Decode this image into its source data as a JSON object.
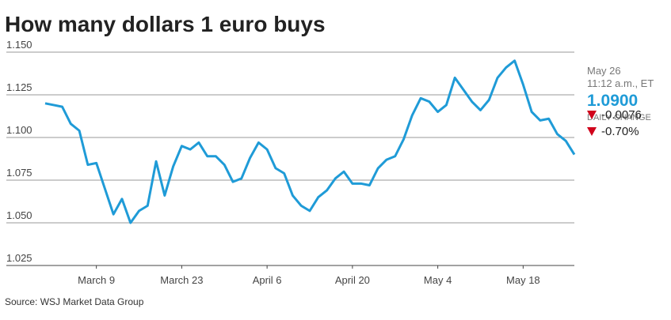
{
  "chart_data": {
    "type": "line",
    "title": "How many dollars 1 euro buys",
    "source": "Source: WSJ Market Data Group",
    "categories": [
      null,
      null,
      null,
      null,
      null,
      null,
      "March 9",
      null,
      null,
      null,
      null,
      null,
      null,
      null,
      null,
      null,
      "March 23",
      null,
      null,
      null,
      null,
      null,
      null,
      null,
      null,
      null,
      "April 6",
      null,
      null,
      null,
      null,
      null,
      null,
      null,
      null,
      null,
      "April 20",
      null,
      null,
      null,
      null,
      null,
      null,
      null,
      null,
      null,
      "May 4",
      null,
      null,
      null,
      null,
      null,
      null,
      null,
      null,
      null,
      "May 18",
      null,
      null,
      null,
      null,
      null,
      null
    ],
    "series": [
      {
        "color": "#1f9bd7",
        "values": [
          1.12,
          1.119,
          1.118,
          1.108,
          1.104,
          1.084,
          1.085,
          1.07,
          1.055,
          1.064,
          1.05,
          1.057,
          1.06,
          1.086,
          1.066,
          1.083,
          1.095,
          1.093,
          1.097,
          1.089,
          1.089,
          1.084,
          1.074,
          1.076,
          1.088,
          1.097,
          1.093,
          1.082,
          1.079,
          1.066,
          1.06,
          1.057,
          1.065,
          1.069,
          1.076,
          1.08,
          1.073,
          1.073,
          1.072,
          1.082,
          1.087,
          1.089,
          1.099,
          1.113,
          1.123,
          1.121,
          1.115,
          1.119,
          1.135,
          1.128,
          1.121,
          1.116,
          1.122,
          1.135,
          1.141,
          1.145,
          1.131,
          1.115,
          1.11,
          1.111,
          1.102,
          1.098,
          1.09
        ]
      }
    ],
    "ylim": [
      1.025,
      1.15
    ],
    "yticks": [
      {
        "value": 1.025,
        "label": "1.025"
      },
      {
        "value": 1.05,
        "label": "1.050"
      },
      {
        "value": 1.075,
        "label": "1.075"
      },
      {
        "value": 1.1,
        "label": "1.100"
      },
      {
        "value": 1.125,
        "label": "1.125"
      },
      {
        "value": 1.15,
        "label": "1.150"
      }
    ],
    "grid": true
  },
  "quote": {
    "date": "May 26",
    "time": "11:12 a.m., ET",
    "price": "1.0900",
    "change_label": "DAILY CHANGE",
    "change": "-0.0076",
    "change_pct": "-0.70%"
  }
}
